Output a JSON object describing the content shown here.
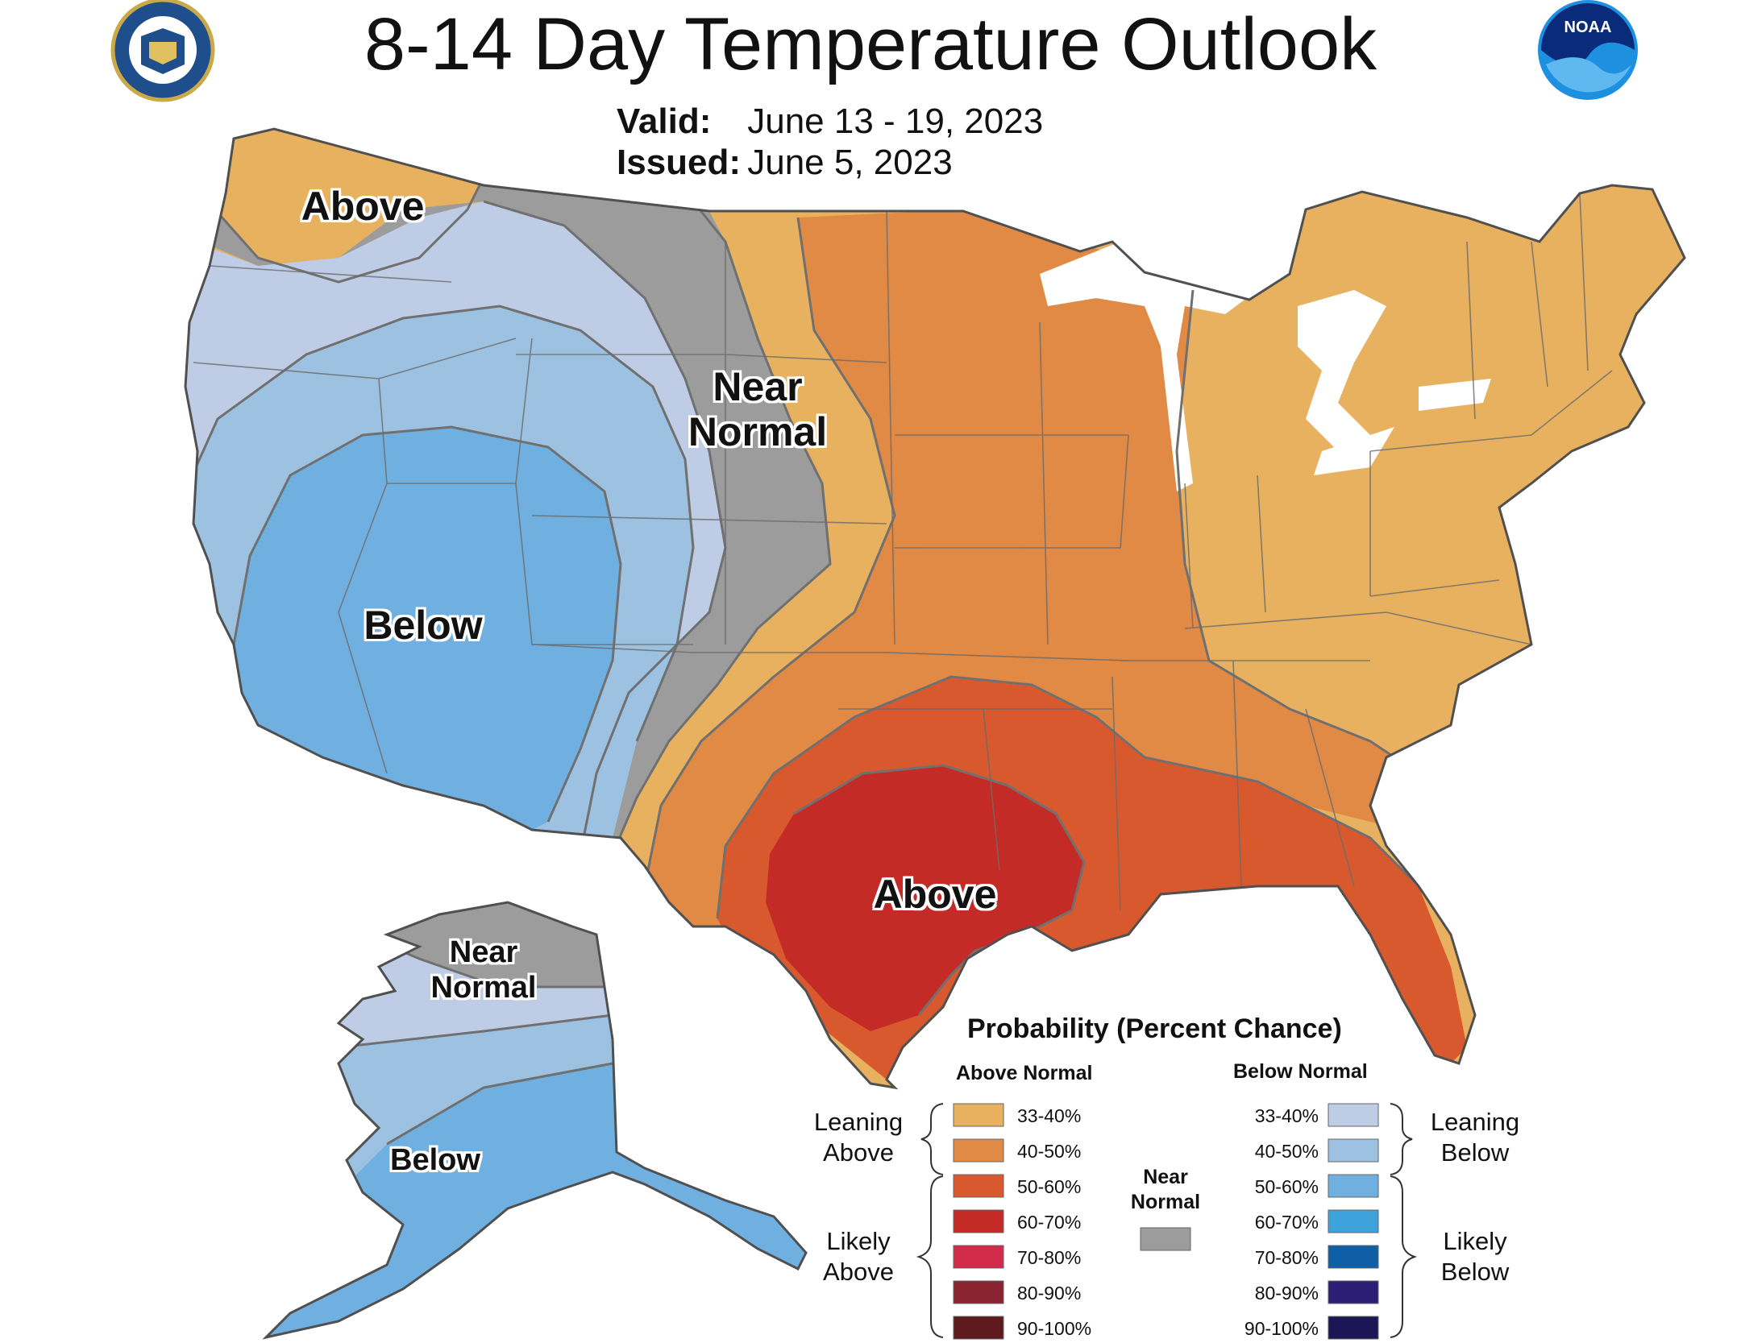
{
  "header": {
    "title": "8-14 Day Temperature Outlook",
    "valid_label": "Valid:",
    "valid_value": "June 13 - 19, 2023",
    "issued_label": "Issued:",
    "issued_value": "June 5, 2023"
  },
  "logos": {
    "left": "doc-seal-icon",
    "right": "noaa-logo-icon",
    "noaa_text": "NOAA"
  },
  "regions": {
    "pnw_above": "Above",
    "near_normal_line1": "Near",
    "near_normal_line2": "Normal",
    "west_below": "Below",
    "south_above": "Above",
    "ak_near_line1": "Near",
    "ak_near_line2": "Normal",
    "ak_below": "Below"
  },
  "colors": {
    "above_33_40": "#E8B160",
    "above_40_50": "#E08A45",
    "above_50_60": "#D8592D",
    "above_60_70": "#C52B26",
    "above_70_80": "#D22B4A",
    "above_80_90": "#8B2331",
    "above_90_100": "#5E1A1D",
    "below_33_40": "#BFCCE6",
    "below_40_50": "#9DC1E0",
    "below_50_60": "#70B0E0",
    "below_60_70": "#3EA2DB",
    "below_70_80": "#0F5FA6",
    "below_80_90": "#2C1E75",
    "below_90_100": "#1B1756",
    "near_normal": "#9C9C9C",
    "lakes": "#ffffff",
    "state_lines": "#6b6b6b"
  },
  "legend": {
    "title": "Probability (Percent Chance)",
    "above_header": "Above Normal",
    "below_header": "Below Normal",
    "near_normal_label_1": "Near",
    "near_normal_label_2": "Normal",
    "leaning_above_1": "Leaning",
    "leaning_above_2": "Above",
    "likely_above_1": "Likely",
    "likely_above_2": "Above",
    "leaning_below_1": "Leaning",
    "leaning_below_2": "Below",
    "likely_below_1": "Likely",
    "likely_below_2": "Below",
    "ranges": [
      "33-40%",
      "40-50%",
      "50-60%",
      "60-70%",
      "70-80%",
      "80-90%",
      "90-100%"
    ]
  }
}
